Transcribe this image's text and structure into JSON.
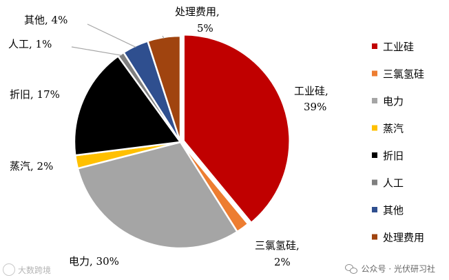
{
  "chart_data": {
    "type": "pie",
    "slices": [
      {
        "name": "工业硅",
        "value": 39,
        "label": "工业硅,",
        "pct": "39%",
        "color": "#C00000"
      },
      {
        "name": "三氯氢硅",
        "value": 2,
        "label": "三氯氢硅,",
        "pct": "2%",
        "color": "#ED7D31"
      },
      {
        "name": "电力",
        "value": 30,
        "label": "电力, 30%",
        "pct": "",
        "color": "#A5A5A5"
      },
      {
        "name": "蒸汽",
        "value": 2,
        "label": "蒸汽, 2%",
        "pct": "",
        "color": "#FFC000"
      },
      {
        "name": "折旧",
        "value": 17,
        "label": "折旧, 17%",
        "pct": "",
        "color": "#000000"
      },
      {
        "name": "人工",
        "value": 1,
        "label": "人工, 1%",
        "pct": "",
        "color": "#7F7F7F"
      },
      {
        "name": "其他",
        "value": 4,
        "label": "其他, 4%",
        "pct": "",
        "color": "#2F4F8F"
      },
      {
        "name": "处理费用",
        "value": 5,
        "label": "处理费用,",
        "pct": "5%",
        "color": "#A0440F"
      }
    ],
    "legend": {
      "placement": "right",
      "items": [
        "工业硅",
        "三氯氢硅",
        "电力",
        "蒸汽",
        "折旧",
        "人工",
        "其他",
        "处理费用"
      ]
    }
  },
  "watermarks": {
    "left_text": "大数跨境",
    "right_text": "公众号 · 光伏研习社"
  }
}
